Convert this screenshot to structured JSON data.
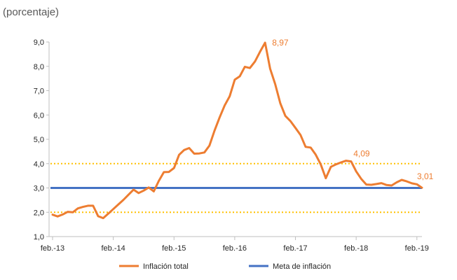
{
  "chart_data": {
    "type": "line",
    "subtitle": "(porcentaje)",
    "ylim": [
      1.0,
      9.0
    ],
    "y_ticks": [
      "9,0",
      "8,0",
      "7,0",
      "6,0",
      "5,0",
      "4,0",
      "3,0",
      "2,0",
      "1,0"
    ],
    "y_tick_values": [
      9,
      8,
      7,
      6,
      5,
      4,
      3,
      2,
      1
    ],
    "x_tick_labels": [
      "feb.-13",
      "feb.-14",
      "feb.-15",
      "feb.-16",
      "feb.-17",
      "feb.-18",
      "feb.-19"
    ],
    "x_tick_index": [
      0,
      12,
      24,
      36,
      48,
      60,
      72
    ],
    "series": [
      {
        "name": "Inflación total",
        "color": "#ed7d31",
        "values": [
          1.9,
          1.83,
          1.91,
          2.02,
          2.0,
          2.16,
          2.22,
          2.27,
          2.27,
          1.84,
          1.76,
          1.94,
          2.13,
          2.32,
          2.51,
          2.72,
          2.93,
          2.79,
          2.89,
          3.02,
          2.86,
          3.29,
          3.65,
          3.66,
          3.82,
          4.36,
          4.56,
          4.64,
          4.41,
          4.42,
          4.46,
          4.74,
          5.35,
          5.89,
          6.39,
          6.77,
          7.45,
          7.59,
          7.98,
          7.93,
          8.2,
          8.6,
          8.97,
          7.9,
          7.27,
          6.48,
          5.96,
          5.75,
          5.47,
          5.18,
          4.69,
          4.66,
          4.37,
          3.97,
          3.4,
          3.87,
          3.97,
          4.05,
          4.12,
          4.09,
          3.68,
          3.37,
          3.14,
          3.13,
          3.16,
          3.2,
          3.12,
          3.1,
          3.23,
          3.33,
          3.27,
          3.19,
          3.15,
          3.01
        ]
      },
      {
        "name": "Meta de inflación",
        "color": "#4472c4",
        "constant": 3.0
      }
    ],
    "target_range": {
      "lower": 2.0,
      "upper": 4.0,
      "color": "#ffc000"
    },
    "annotations": [
      {
        "text": "8,97",
        "index": 42,
        "value": 8.97
      },
      {
        "text": "4,09",
        "index": 59,
        "value": 4.09
      },
      {
        "text": "3,01",
        "index": 73,
        "value": 3.01
      }
    ],
    "legend": {
      "position": "bottom",
      "items": [
        {
          "label": "Inflación total",
          "color": "#ed7d31"
        },
        {
          "label": "Meta de inflación",
          "color": "#4472c4"
        }
      ]
    }
  }
}
